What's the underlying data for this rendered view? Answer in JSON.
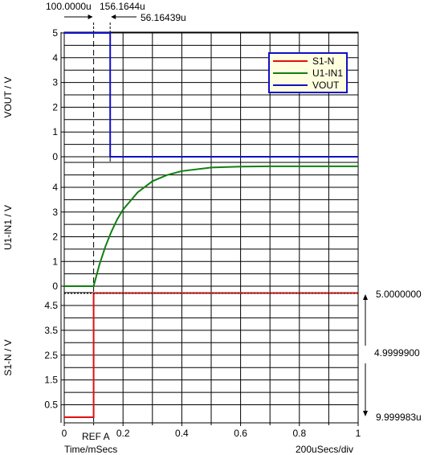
{
  "chart_data": [
    {
      "type": "line",
      "ylabel": "VOUT / V",
      "ylim": [
        0,
        5
      ],
      "yticks": [
        "0",
        "1",
        "2",
        "3",
        "4",
        "5"
      ],
      "xlim": [
        0,
        1
      ],
      "x_unit": "ms",
      "series": [
        {
          "name": "VOUT",
          "color": "#1010c8",
          "x": [
            0.0,
            0.1562,
            0.1562,
            1.0
          ],
          "y": [
            5,
            5,
            0,
            0
          ]
        }
      ],
      "legend": {
        "placement": "top-right",
        "entries": [
          {
            "name": "S1-N",
            "color": "#e01010"
          },
          {
            "name": "U1-IN1",
            "color": "#108010"
          },
          {
            "name": "VOUT",
            "color": "#1010c8"
          }
        ]
      }
    },
    {
      "type": "line",
      "ylabel": "U1-IN1 / V",
      "ylim": [
        0,
        5
      ],
      "yticks": [
        "0",
        "1",
        "2",
        "3",
        "4"
      ],
      "xlim": [
        0,
        1
      ],
      "x_unit": "ms",
      "series": [
        {
          "name": "U1-IN1",
          "color": "#108010",
          "x": [
            0.0,
            0.1,
            0.12,
            0.14,
            0.16,
            0.18,
            0.2,
            0.25,
            0.3,
            0.35,
            0.4,
            0.5,
            0.6,
            0.7,
            0.8,
            0.9,
            1.0
          ],
          "y": [
            0,
            0,
            0.88,
            1.6,
            2.2,
            2.7,
            3.1,
            3.8,
            4.25,
            4.5,
            4.66,
            4.8,
            4.84,
            4.85,
            4.85,
            4.85,
            4.85
          ]
        }
      ]
    },
    {
      "type": "line",
      "ylabel": "S1-N / V",
      "ylim": [
        0,
        5
      ],
      "yticks": [
        "0.5",
        "1.5",
        "2.5",
        "3.5",
        "4.5"
      ],
      "xlim": [
        0,
        1
      ],
      "xticks": [
        "0",
        "0.2",
        "0.4",
        "0.6",
        "0.8",
        "1"
      ],
      "xticks_minor": [
        "0.1",
        "0.3",
        "0.5",
        "0.7",
        "0.9"
      ],
      "series": [
        {
          "name": "S1-N",
          "color": "#e01010",
          "x": [
            0.0,
            0.1,
            0.1,
            1.0
          ],
          "y": [
            0,
            0,
            5,
            5
          ]
        }
      ]
    }
  ],
  "cursors": {
    "cursor_a": "100.0000u",
    "cursor_b": "156.1644u",
    "delta": "56.16439u",
    "reference": "REF A"
  },
  "right_scale": {
    "top": "5.0000000",
    "middle": "4.9999900",
    "bottom": "9.999983u"
  },
  "footer": {
    "xlabel": "Time/mSecs",
    "scale": "200uSecs/div"
  }
}
